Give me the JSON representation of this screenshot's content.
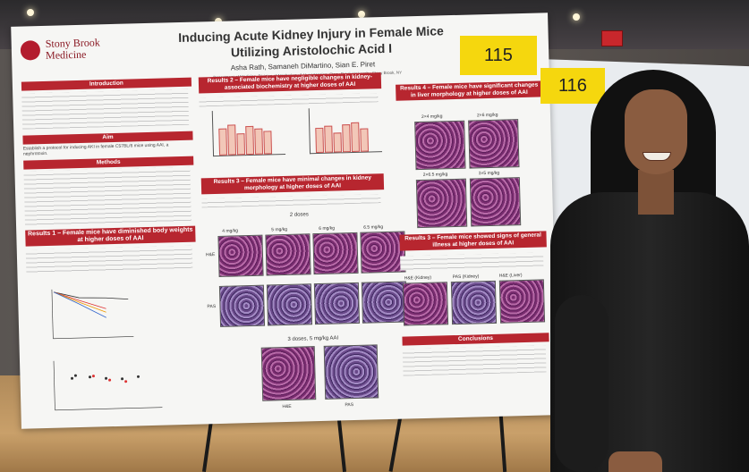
{
  "poster": {
    "logo_line1": "Stony Brook",
    "logo_line2": "Medicine",
    "title": "Inducing Acute Kidney Injury in Female Mice Utilizing Aristolochic Acid I",
    "authors": "Asha Rath, Samaneh DiMartino, Sian E. Piret",
    "affiliation": "Department of Medicine, Division of Nephrology & Hypertension, Stony Brook University, Stony Brook, NY",
    "sections": {
      "introduction": "Introduction",
      "aim": "Aim",
      "aim_text": "Establish a protocol for inducing AKI in female C57BL/6 mice using AAI, a nephrotoxin.",
      "methods": "Methods",
      "results1": "Results 1 – Female mice have diminished body weights at higher doses of AAI",
      "results2": "Results 2 – Female mice have negligible changes in kidney-associated biochemistry at higher doses of AAI",
      "results3a": "Results 3 – Female mice have minimal changes in kidney morphology at higher doses of AAI",
      "results4": "Results 4 – Female mice have significant changes in liver morphology at higher doses of AAI",
      "results3b": "Results 3 – Female mice showed signs of general illness at higher doses of AAI",
      "conclusions": "Conclusions"
    },
    "labels": {
      "two_doses": "2 doses",
      "three_doses": "3 doses, 5 mg/kg AAI",
      "he": "H&E",
      "pas": "PAS",
      "d4": "4 mg/kg",
      "d5": "5 mg/kg",
      "d6": "6 mg/kg",
      "d65": "6.5 mg/kg",
      "l24": "2×4 mg/kg",
      "l26": "2×6 mg/kg",
      "l265": "2×6.5 mg/kg",
      "l35": "3×5 mg/kg",
      "he_kidney": "H&E (Kidney)",
      "pas_kidney": "PAS (Kidney)",
      "he_liver": "H&E (Liver)"
    }
  },
  "tags": {
    "tag1": "115",
    "tag2": "116"
  }
}
